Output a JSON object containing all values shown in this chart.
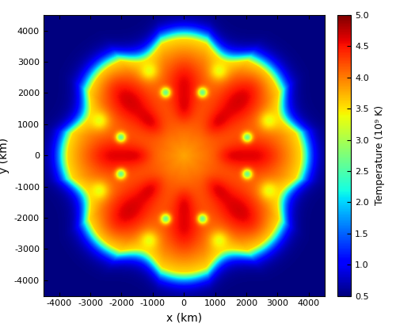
{
  "xlabel": "x (km)",
  "ylabel": "y (km)",
  "cbar_label": "Temperature (10⁹ K)",
  "vmin": 0.5,
  "vmax": 5.0,
  "cbar_ticks": [
    0.5,
    1.0,
    1.5,
    2.0,
    2.5,
    3.0,
    3.5,
    4.0,
    4.5,
    5.0
  ],
  "grid_N": 600,
  "colormap": "jet",
  "xticks": [
    -4000,
    -3000,
    -2000,
    -1000,
    0,
    1000,
    2000,
    3000,
    4000
  ],
  "yticks": [
    -4000,
    -3000,
    -2000,
    -1000,
    0,
    1000,
    2000,
    3000,
    4000
  ],
  "domain": 4500,
  "figsize": [
    5.0,
    4.23
  ],
  "dpi": 100
}
